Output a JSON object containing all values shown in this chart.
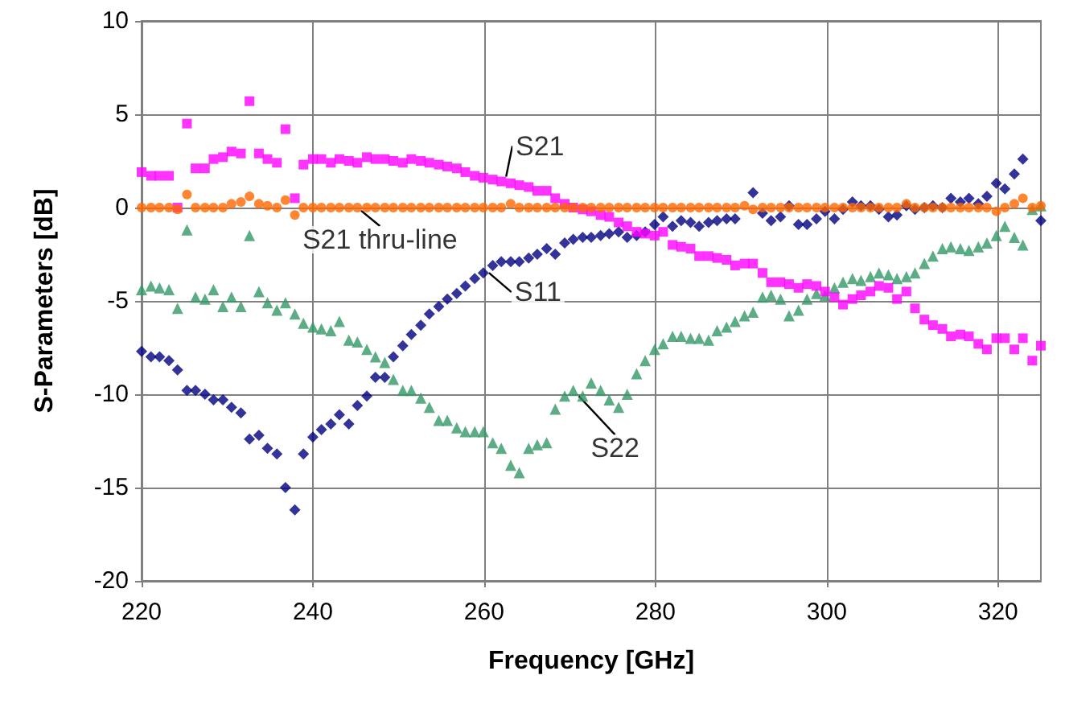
{
  "chart_data": {
    "type": "scatter",
    "xlabel": "Frequency [GHz]",
    "ylabel": "S-Parameters [dB]",
    "x": [
      220,
      221.1,
      222.1,
      223.2,
      224.2,
      225.3,
      226.3,
      227.4,
      228.4,
      229.5,
      230.5,
      231.6,
      232.6,
      233.7,
      234.7,
      235.8,
      236.8,
      237.9,
      238.9,
      240,
      241,
      242.1,
      243.1,
      244.2,
      245.2,
      246.3,
      247.3,
      248.4,
      249.4,
      250.5,
      251.5,
      252.6,
      253.6,
      254.7,
      255.7,
      256.8,
      257.8,
      258.9,
      259.9,
      261,
      262,
      263.1,
      264.1,
      265.2,
      266.2,
      267.3,
      268.3,
      269.4,
      270.4,
      271.5,
      272.5,
      273.6,
      274.6,
      275.7,
      276.7,
      277.8,
      278.8,
      279.9,
      280.9,
      282,
      283,
      284.1,
      285.1,
      286.2,
      287.2,
      288.3,
      289.3,
      290.4,
      291.4,
      292.5,
      293.5,
      294.6,
      295.6,
      296.7,
      297.7,
      298.8,
      299.8,
      300.9,
      301.9,
      303,
      304,
      305.1,
      306.1,
      307.2,
      308.2,
      309.3,
      310.3,
      311.4,
      312.4,
      313.5,
      314.5,
      315.6,
      316.6,
      317.7,
      318.7,
      319.8,
      320.8,
      321.9,
      322.9,
      324,
      325
    ],
    "series": [
      {
        "name": "S11",
        "color": "#000080",
        "marker": "diamond",
        "values": [
          -7.7,
          -8.0,
          -8.0,
          -8.2,
          -8.7,
          -9.8,
          -9.8,
          -10.0,
          -10.3,
          -10.3,
          -10.7,
          -11.0,
          -12.4,
          -12.2,
          -12.9,
          -13.2,
          -15.0,
          -16.2,
          -13.2,
          -12.3,
          -11.9,
          -11.6,
          -11.1,
          -11.6,
          -10.6,
          -10.1,
          -9.1,
          -9.1,
          -8.0,
          -7.4,
          -6.8,
          -6.3,
          -5.7,
          -5.3,
          -4.9,
          -4.6,
          -4.2,
          -3.8,
          -3.5,
          -3.1,
          -2.9,
          -2.9,
          -2.9,
          -2.7,
          -2.5,
          -2.2,
          -2.5,
          -1.9,
          -1.7,
          -1.6,
          -1.6,
          -1.5,
          -1.4,
          -1.3,
          -1.6,
          -1.5,
          -1.3,
          -0.9,
          -0.5,
          -1.0,
          -0.7,
          -0.8,
          -1.0,
          -0.8,
          -0.7,
          -0.6,
          -0.6,
          null,
          0.8,
          -0.3,
          -0.7,
          -0.5,
          0.1,
          -0.9,
          -0.9,
          -0.6,
          -0.2,
          -0.6,
          -0.1,
          0.3,
          0.1,
          0.1,
          -0.1,
          -0.5,
          -0.4,
          0.1,
          -0.1,
          0,
          0.1,
          0,
          0.5,
          0.3,
          0.5,
          0.2,
          0.6,
          1.3,
          1.0,
          1.8,
          2.6,
          null,
          -0.7
        ]
      },
      {
        "name": "S22",
        "color": "#339966",
        "marker": "triangle",
        "values": [
          -4.4,
          -4.2,
          -4.3,
          -4.4,
          -5.4,
          -1.2,
          -4.8,
          -4.9,
          -4.4,
          -5.3,
          -4.8,
          -5.3,
          -1.5,
          -4.5,
          -5.1,
          -5.5,
          -5.1,
          -5.7,
          -6.2,
          -6.4,
          -6.5,
          -6.6,
          -6.1,
          -7.1,
          -7.2,
          -7.6,
          -8.0,
          -8.3,
          -9.2,
          -9.8,
          -9.8,
          -10.2,
          -10.7,
          -11.4,
          -11.4,
          -11.8,
          -12.0,
          -12.0,
          -12.0,
          -12.6,
          -12.9,
          -13.8,
          -14.2,
          -12.9,
          -12.7,
          -12.6,
          -10.8,
          -10.1,
          -9.8,
          -10.1,
          -9.4,
          -9.8,
          -10.3,
          -10.7,
          -10.0,
          -8.9,
          -8.2,
          -7.6,
          -7.3,
          -6.9,
          -6.9,
          -7.0,
          -7.0,
          -7.1,
          -6.6,
          -6.4,
          -6.1,
          -5.8,
          -5.6,
          -4.8,
          -4.7,
          -4.9,
          -5.8,
          -5.5,
          -4.9,
          -4.6,
          -4.7,
          -4.3,
          -4.0,
          -3.8,
          -3.9,
          -3.7,
          -3.5,
          -3.6,
          -3.8,
          -3.7,
          -3.5,
          -3.0,
          -2.6,
          -2.2,
          -2.1,
          -2.2,
          -2.3,
          -2.1,
          -1.9,
          -1.5,
          -1.0,
          -1.6,
          -2.0,
          -0.1,
          0.1
        ]
      },
      {
        "name": "S21",
        "color": "#ff00ff",
        "marker": "square",
        "values": [
          1.9,
          1.7,
          1.7,
          1.7,
          0,
          4.5,
          2.1,
          2.1,
          2.6,
          2.7,
          3.0,
          2.9,
          5.7,
          2.9,
          2.6,
          2.4,
          4.2,
          0.5,
          2.3,
          2.6,
          2.6,
          2.4,
          2.6,
          2.5,
          2.4,
          2.7,
          2.6,
          2.6,
          2.5,
          2.4,
          2.6,
          2.5,
          2.4,
          2.3,
          2.2,
          2.1,
          1.9,
          1.7,
          1.6,
          1.5,
          1.4,
          1.3,
          1.2,
          1.1,
          0.9,
          0.9,
          0.5,
          0.2,
          0,
          -0.1,
          -0.2,
          -0.4,
          -0.5,
          -0.8,
          -1.0,
          -1.3,
          -1.4,
          -1.5,
          -1.3,
          -2.0,
          -2.1,
          -2.2,
          -2.6,
          -2.6,
          -2.7,
          -2.8,
          -3.1,
          -3.0,
          -3.0,
          -3.5,
          -4.0,
          -4.0,
          -4.1,
          -4.3,
          -4.1,
          -4.2,
          -4.5,
          -4.8,
          -5.2,
          -4.9,
          -4.7,
          -4.5,
          -4.2,
          -4.3,
          -4.9,
          -4.5,
          -5.4,
          -6.0,
          -6.3,
          -6.5,
          -6.9,
          -6.8,
          -6.9,
          -7.3,
          -7.6,
          -7.0,
          -7.0,
          -7.6,
          -7.0,
          -8.2,
          -7.4
        ]
      },
      {
        "name": "S21 thru-line",
        "color": "#ff6600",
        "marker": "circle",
        "values": [
          0,
          0,
          0,
          0,
          -0.1,
          0.7,
          0,
          0,
          0,
          0,
          0.2,
          0.3,
          0.6,
          0.2,
          0.1,
          0,
          0.4,
          -0.4,
          0,
          0,
          0,
          0,
          0,
          0,
          0,
          0,
          0,
          0,
          0,
          0,
          0,
          0,
          0,
          0,
          0,
          0,
          0,
          0,
          0,
          0,
          0,
          0.2,
          0,
          0,
          0,
          0,
          0,
          0,
          0,
          0,
          0,
          0,
          0,
          0,
          0,
          0,
          0,
          0,
          0,
          0,
          0,
          0,
          0,
          0,
          0,
          0,
          0,
          0.1,
          -0.1,
          0,
          0,
          0,
          0,
          0,
          0,
          0,
          0,
          0,
          0,
          0,
          0,
          0,
          0,
          0,
          0,
          0.2,
          0,
          0,
          0,
          0,
          0,
          0,
          0,
          0,
          0,
          -0.2,
          0,
          0.2,
          0.5,
          0,
          0.1
        ]
      }
    ],
    "xlim": [
      220,
      325
    ],
    "xticks": [
      220,
      240,
      260,
      280,
      300,
      320
    ],
    "ylim": [
      -20,
      10
    ],
    "yticks": [
      -20,
      -15,
      -10,
      -5,
      0,
      5,
      10
    ],
    "grid": true,
    "legend": false
  }
}
